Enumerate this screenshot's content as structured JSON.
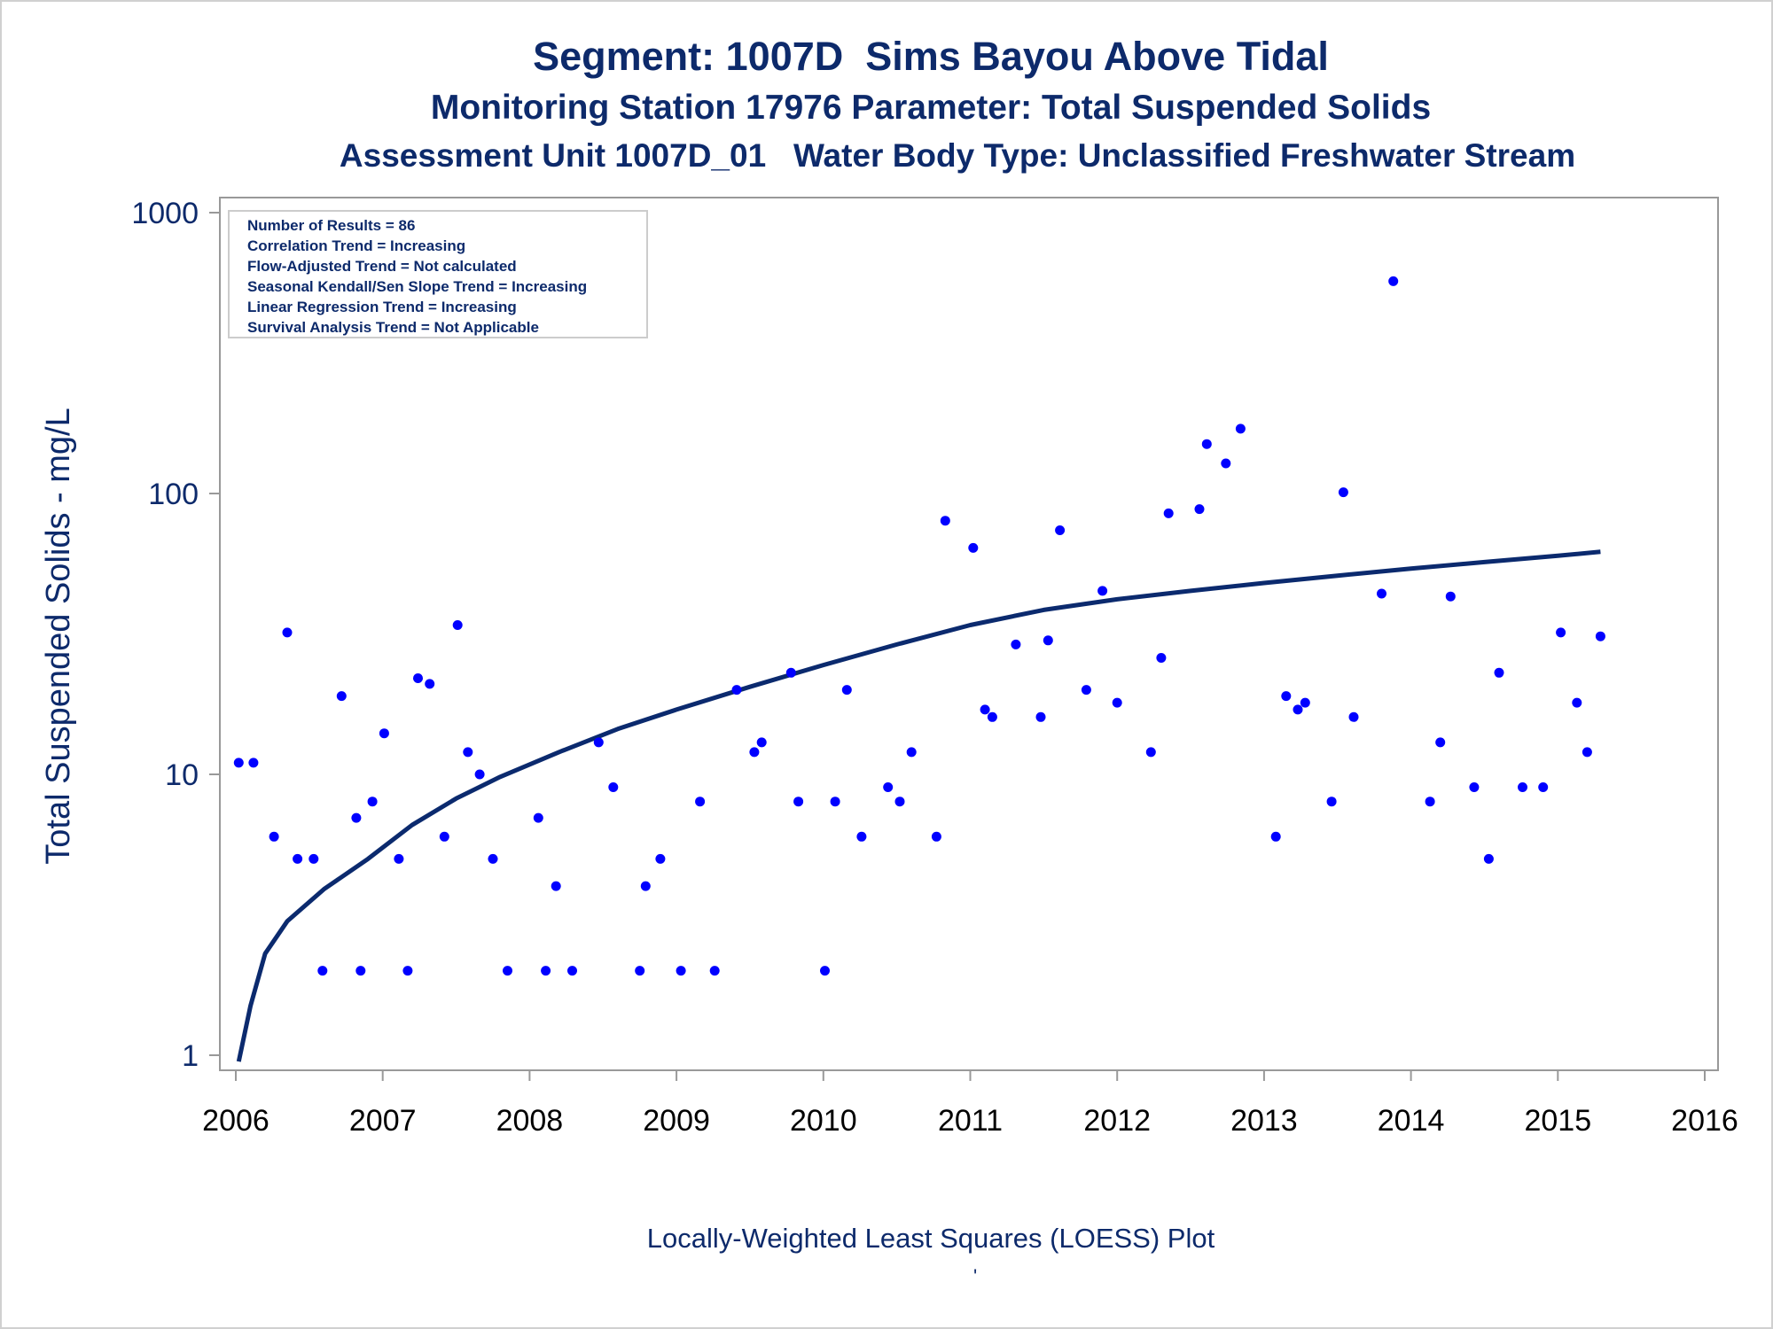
{
  "titles": {
    "line1": "Segment: 1007D  Sims Bayou Above Tidal",
    "line2": "Monitoring Station 17976 Parameter: Total Suspended Solids",
    "line3": "Assessment Unit 1007D_01   Water Body Type: Unclassified Freshwater Stream"
  },
  "stats_box": [
    "Number of Results = 86",
    "Correlation Trend = Increasing",
    "Flow-Adjusted Trend = Not calculated",
    "Seasonal Kendall/Sen Slope Trend = Increasing",
    "Linear Regression Trend = Increasing",
    "Survival Analysis Trend = Not Applicable"
  ],
  "footnote": "Locally-Weighted Least Squares (LOESS) Plot",
  "footnote_mark": "'",
  "colors": {
    "text": "#0d2a6b",
    "points": "#0000ff",
    "curve": "#0b2a6e",
    "frame": "#999999"
  },
  "chart_data": {
    "type": "scatter",
    "ylabel": "Total Suspended Solids - mg/L",
    "xlabel": "",
    "yscale": "log",
    "ylim": [
      1,
      1000
    ],
    "xlim": [
      2006,
      2016
    ],
    "x_ticks": [
      "2006",
      "2007",
      "2008",
      "2009",
      "2010",
      "2011",
      "2012",
      "2013",
      "2014",
      "2015",
      "2016"
    ],
    "y_ticks": [
      "1",
      "10",
      "100",
      "1000"
    ],
    "grid": false,
    "series": [
      {
        "kind": "points",
        "points": [
          [
            2006.02,
            11
          ],
          [
            2006.12,
            11
          ],
          [
            2006.26,
            6
          ],
          [
            2006.35,
            32
          ],
          [
            2006.42,
            5
          ],
          [
            2006.53,
            5
          ],
          [
            2006.59,
            2
          ],
          [
            2006.72,
            19
          ],
          [
            2006.82,
            7
          ],
          [
            2006.85,
            2
          ],
          [
            2006.93,
            8
          ],
          [
            2007.01,
            14
          ],
          [
            2007.11,
            5
          ],
          [
            2007.17,
            2
          ],
          [
            2007.24,
            22
          ],
          [
            2007.32,
            21
          ],
          [
            2007.42,
            6
          ],
          [
            2007.51,
            34
          ],
          [
            2007.58,
            12
          ],
          [
            2007.66,
            10
          ],
          [
            2007.75,
            5
          ],
          [
            2007.85,
            2
          ],
          [
            2008.06,
            7
          ],
          [
            2008.11,
            2
          ],
          [
            2008.18,
            4
          ],
          [
            2008.29,
            2
          ],
          [
            2008.47,
            13
          ],
          [
            2008.57,
            9
          ],
          [
            2008.75,
            2
          ],
          [
            2008.79,
            4
          ],
          [
            2008.89,
            5
          ],
          [
            2009.03,
            2
          ],
          [
            2009.16,
            8
          ],
          [
            2009.26,
            2
          ],
          [
            2009.41,
            20
          ],
          [
            2009.53,
            12
          ],
          [
            2009.58,
            13
          ],
          [
            2009.78,
            23
          ],
          [
            2009.83,
            8
          ],
          [
            2010.01,
            2
          ],
          [
            2010.08,
            8
          ],
          [
            2010.16,
            20
          ],
          [
            2010.26,
            6
          ],
          [
            2010.44,
            9
          ],
          [
            2010.52,
            8
          ],
          [
            2010.6,
            12
          ],
          [
            2010.77,
            6
          ],
          [
            2010.83,
            80
          ],
          [
            2011.02,
            64
          ],
          [
            2011.1,
            17
          ],
          [
            2011.15,
            16
          ],
          [
            2011.31,
            29
          ],
          [
            2011.48,
            16
          ],
          [
            2011.53,
            30
          ],
          [
            2011.61,
            74
          ],
          [
            2011.79,
            20
          ],
          [
            2011.9,
            45
          ],
          [
            2012.0,
            18
          ],
          [
            2012.23,
            12
          ],
          [
            2012.3,
            26
          ],
          [
            2012.35,
            85
          ],
          [
            2012.56,
            88
          ],
          [
            2012.61,
            150
          ],
          [
            2012.74,
            128
          ],
          [
            2012.84,
            170
          ],
          [
            2013.08,
            6
          ],
          [
            2013.15,
            19
          ],
          [
            2013.23,
            17
          ],
          [
            2013.28,
            18
          ],
          [
            2013.46,
            8
          ],
          [
            2013.54,
            101
          ],
          [
            2013.61,
            16
          ],
          [
            2013.8,
            44
          ],
          [
            2013.88,
            570
          ],
          [
            2014.13,
            8
          ],
          [
            2014.2,
            13
          ],
          [
            2014.27,
            43
          ],
          [
            2014.43,
            9
          ],
          [
            2014.53,
            5
          ],
          [
            2014.6,
            23
          ],
          [
            2014.76,
            9
          ],
          [
            2014.9,
            9
          ],
          [
            2015.02,
            32
          ],
          [
            2015.13,
            18
          ],
          [
            2015.2,
            12
          ],
          [
            2015.29,
            31
          ]
        ]
      },
      {
        "kind": "loess-curve",
        "points": [
          [
            2006.02,
            0.95
          ],
          [
            2006.1,
            1.5
          ],
          [
            2006.2,
            2.3
          ],
          [
            2006.35,
            3.0
          ],
          [
            2006.6,
            3.9
          ],
          [
            2006.9,
            5.0
          ],
          [
            2007.2,
            6.6
          ],
          [
            2007.5,
            8.2
          ],
          [
            2007.8,
            9.8
          ],
          [
            2008.2,
            12.0
          ],
          [
            2008.6,
            14.5
          ],
          [
            2009.0,
            17.0
          ],
          [
            2009.5,
            20.5
          ],
          [
            2010.0,
            24.5
          ],
          [
            2010.5,
            29.0
          ],
          [
            2011.0,
            34.0
          ],
          [
            2011.5,
            38.5
          ],
          [
            2012.0,
            42.0
          ],
          [
            2012.5,
            45.0
          ],
          [
            2013.0,
            48.0
          ],
          [
            2013.5,
            51.0
          ],
          [
            2014.0,
            54.0
          ],
          [
            2014.5,
            57.0
          ],
          [
            2015.0,
            60.0
          ],
          [
            2015.29,
            62.0
          ]
        ]
      }
    ]
  }
}
